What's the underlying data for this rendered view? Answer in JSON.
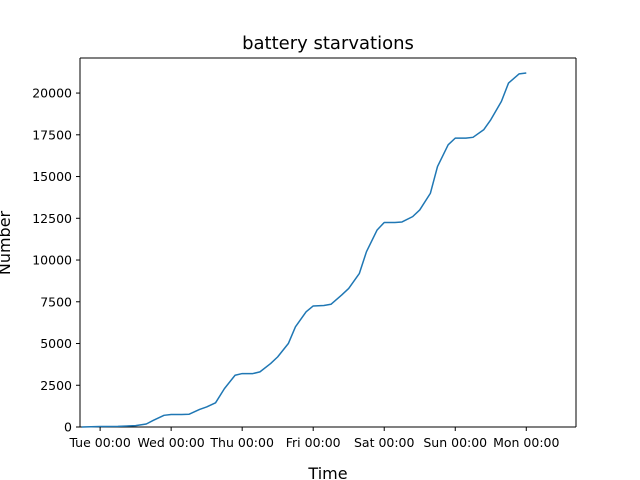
{
  "chart_data": {
    "type": "line",
    "title": "battery starvations",
    "xlabel": "Time",
    "ylabel": "Number",
    "x_ticks": [
      "Tue 00:00",
      "Wed 00:00",
      "Thu 00:00",
      "Fri 00:00",
      "Sat 00:00",
      "Sun 00:00",
      "Mon 00:00"
    ],
    "xlim": [
      "Mon 17:12",
      "Mon 16:48"
    ],
    "ylim": [
      0,
      22100
    ],
    "y_ticks": [
      0,
      2500,
      5000,
      7500,
      10000,
      12500,
      15000,
      17500,
      20000
    ],
    "grid": false,
    "series": [
      {
        "color": "#1f77b4",
        "x": [
          "Mon 17:47",
          "Tue 00:00",
          "Tue 06:00",
          "Tue 12:00",
          "Tue 15:36",
          "Tue 18:00",
          "Tue 21:36",
          "Wed 00:00",
          "Wed 03:36",
          "Wed 06:00",
          "Wed 09:36",
          "Wed 12:00",
          "Wed 15:00",
          "Wed 18:00",
          "Wed 21:36",
          "Thu 00:00",
          "Thu 03:36",
          "Thu 06:00",
          "Thu 09:36",
          "Thu 12:00",
          "Thu 15:36",
          "Thu 18:00",
          "Thu 21:36",
          "Fri 00:00",
          "Fri 03:36",
          "Fri 06:00",
          "Fri 09:36",
          "Fri 12:00",
          "Fri 15:36",
          "Fri 18:00",
          "Fri 21:36",
          "Sat 00:00",
          "Sat 03:36",
          "Sat 06:00",
          "Sat 09:36",
          "Sat 12:00",
          "Sat 15:36",
          "Sat 18:00",
          "Sat 21:36",
          "Sun 00:00",
          "Sun 03:36",
          "Sun 06:00",
          "Sun 09:36",
          "Sun 12:00",
          "Sun 15:36",
          "Sun 18:00",
          "Sun 21:36",
          "Mon 00:00"
        ],
        "y": [
          0,
          30,
          40,
          80,
          180,
          400,
          700,
          750,
          750,
          760,
          1050,
          1200,
          1450,
          2300,
          3100,
          3200,
          3200,
          3300,
          3800,
          4200,
          5000,
          6000,
          6900,
          7250,
          7280,
          7350,
          7900,
          8300,
          9200,
          10500,
          11800,
          12250,
          12250,
          12280,
          12600,
          13000,
          14000,
          15600,
          16900,
          17300,
          17300,
          17350,
          17800,
          18400,
          19500,
          20600,
          21150,
          21200
        ]
      }
    ]
  }
}
